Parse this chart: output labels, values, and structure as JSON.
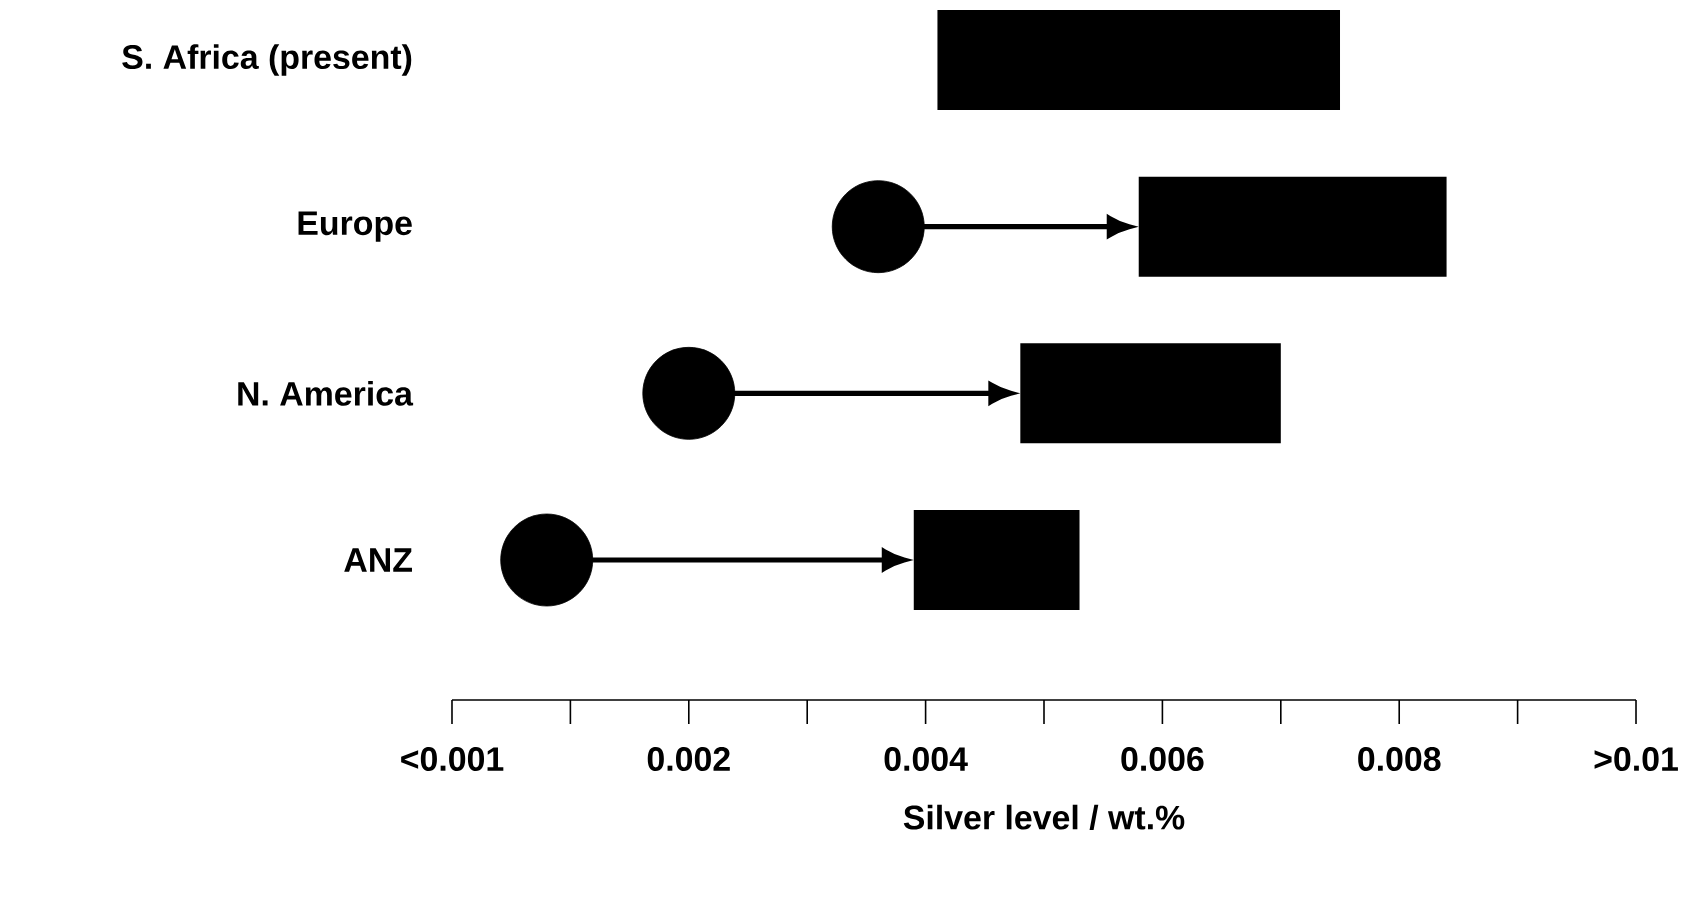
{
  "chart_data": {
    "type": "bar",
    "orientation": "horizontal",
    "categories": [
      "S. Africa (present)",
      "Europe",
      "N. America",
      "ANZ"
    ],
    "series": [
      {
        "color": "#000000",
        "base": [
          0.0041,
          0.0058,
          0.0048,
          0.0039
        ],
        "values": [
          0.0034,
          0.0026,
          0.0022,
          0.0014
        ]
      },
      {
        "type": "scatter",
        "color": "#000000",
        "marker": "circle",
        "values": [
          null,
          0.0036,
          0.002,
          0.0008
        ]
      }
    ],
    "xlim": [
      0,
      0.01
    ],
    "xticks": [
      {
        "value": 0,
        "label": "<0.001"
      },
      {
        "value": 0.001,
        "label": null
      },
      {
        "value": 0.002,
        "label": "0.002"
      },
      {
        "value": 0.003,
        "label": null
      },
      {
        "value": 0.004,
        "label": "0.004"
      },
      {
        "value": 0.005,
        "label": null
      },
      {
        "value": 0.006,
        "label": "0.006"
      },
      {
        "value": 0.007,
        "label": null
      },
      {
        "value": 0.008,
        "label": "0.008"
      },
      {
        "value": 0.009,
        "label": null
      },
      {
        "value": 0.01,
        "label": ">0.01"
      }
    ],
    "xlabel": "Silver level / wt.%"
  }
}
